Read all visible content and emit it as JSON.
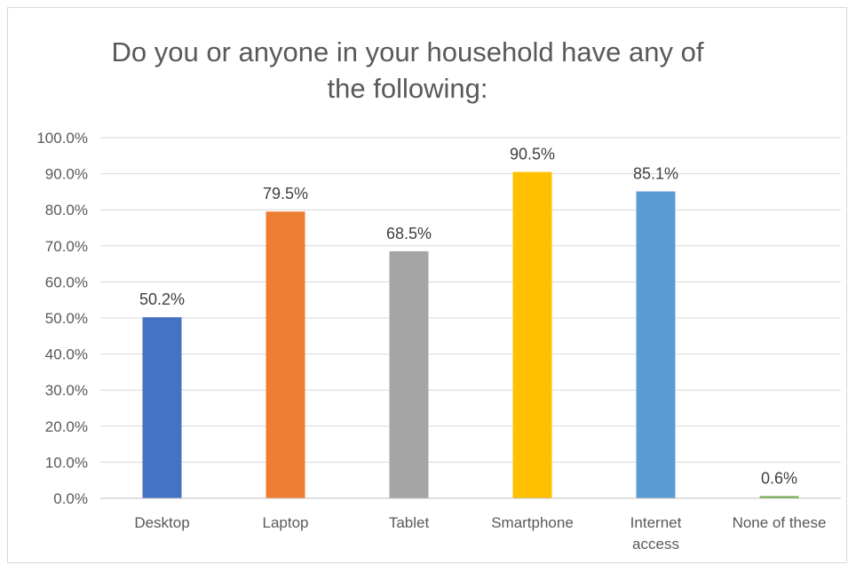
{
  "chart_data": {
    "type": "bar",
    "title_lines": [
      "Do you or anyone in your household have any of",
      "the following:"
    ],
    "categories": [
      "Desktop",
      "Laptop",
      "Tablet",
      "Smartphone",
      "Internet access",
      "None of these"
    ],
    "category_lines": [
      [
        "Desktop"
      ],
      [
        "Laptop"
      ],
      [
        "Tablet"
      ],
      [
        "Smartphone"
      ],
      [
        "Internet",
        "access"
      ],
      [
        "None of these"
      ]
    ],
    "values": [
      50.2,
      79.5,
      68.5,
      90.5,
      85.1,
      0.6
    ],
    "value_labels": [
      "50.2%",
      "79.5%",
      "68.5%",
      "90.5%",
      "85.1%",
      "0.6%"
    ],
    "colors": [
      "#4472C4",
      "#ED7D31",
      "#A5A5A5",
      "#FFC000",
      "#5B9BD5",
      "#70AD47"
    ],
    "yticks": [
      0,
      10,
      20,
      30,
      40,
      50,
      60,
      70,
      80,
      90,
      100
    ],
    "ytick_labels": [
      "0.0%",
      "10.0%",
      "20.0%",
      "30.0%",
      "40.0%",
      "50.0%",
      "60.0%",
      "70.0%",
      "80.0%",
      "90.0%",
      "100.0%"
    ],
    "ylim": [
      0,
      100
    ],
    "grid": true,
    "legend": "none"
  }
}
